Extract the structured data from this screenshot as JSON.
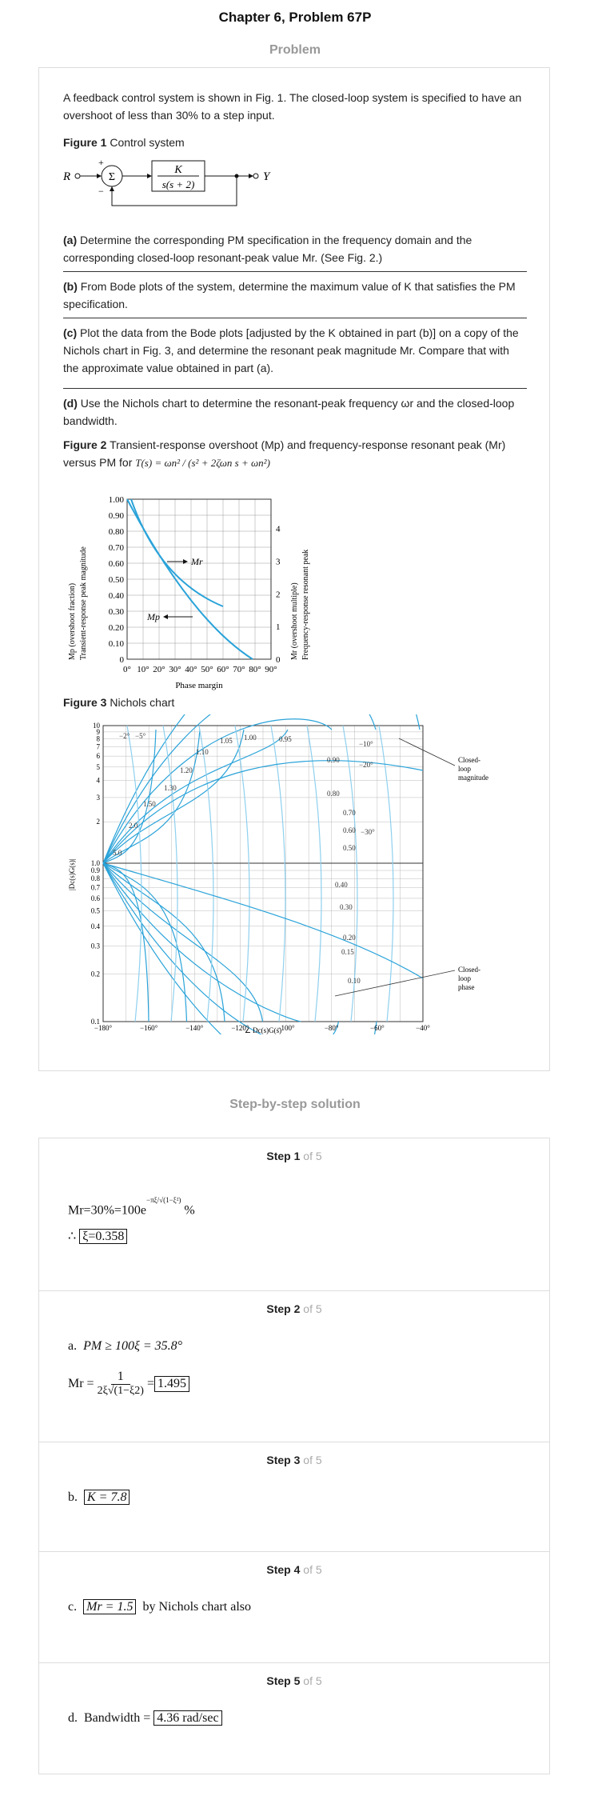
{
  "title": "Chapter 6, Problem 67P",
  "problem_heading": "Problem",
  "intro": "A feedback control system is shown in Fig. 1. The closed-loop system is specified to have an overshoot of less than 30% to a step input.",
  "fig1": {
    "label": "Figure 1",
    "caption": "Control system",
    "input": "R",
    "output": "Y",
    "plus": "+",
    "minus": "−",
    "sum": "Σ",
    "gain_num": "K",
    "gain_den": "s(s + 2)"
  },
  "parts": {
    "a_label": "(a)",
    "a_text": "Determine the corresponding PM specification in the frequency domain and the corresponding closed-loop resonant-peak value Mr. (See Fig. 2.)",
    "b_label": "(b)",
    "b_text": "From Bode plots of the system, determine the maximum value of K that satisfies the PM specification.",
    "c_label": "(c)",
    "c_text": "Plot the data from the Bode plots [adjusted by the K obtained in part (b)] on a copy of the Nichols chart in Fig. 3, and determine the resonant peak magnitude Mr. Compare that with the approximate value obtained in part (a).",
    "d_label": "(d)",
    "d_text": "Use the Nichols chart to determine the resonant-peak frequency ωr and the closed-loop bandwidth."
  },
  "fig2": {
    "label": "Figure 2",
    "caption": "Transient-response overshoot (Mp) and frequency-response resonant peak (Mr) versus PM for",
    "tf": "T(s) = ωn² / (s² + 2ζωn s + ωn²)",
    "left_ticks": [
      "0",
      "0.10",
      "0.20",
      "0.30",
      "0.40",
      "0.50",
      "0.60",
      "0.70",
      "0.80",
      "0.90",
      "1.00"
    ],
    "right_ticks": [
      "0",
      "1",
      "2",
      "3",
      "4"
    ],
    "x_ticks": [
      "0°",
      "10°",
      "20°",
      "30°",
      "40°",
      "50°",
      "60°",
      "70°",
      "80°",
      "90°"
    ],
    "xlabel": "Phase margin",
    "ylabel_left1": "Mp (overshoot fraction)",
    "ylabel_left2": "Transient-response peak magnitude",
    "ylabel_right1": "Mr (overshoot multiple)",
    "ylabel_right2": "Frequency-response resonant peak",
    "mr_label": "Mr",
    "mp_label": "Mp"
  },
  "fig3": {
    "label": "Figure 3",
    "caption": "Nichols chart",
    "y_ticks": [
      "0.1",
      "0.2",
      "0.3",
      "0.4",
      "0.5",
      "0.6",
      "0.7",
      "0.8",
      "0.9",
      "1.0",
      "2",
      "3",
      "4",
      "5",
      "6",
      "7",
      "8",
      "9",
      "10"
    ],
    "x_ticks": [
      "−180°",
      "−160°",
      "−140°",
      "−120°",
      "−100°",
      "−80°",
      "−60°",
      "−40°"
    ],
    "xlabel": "∠ Dc(s)G(s)",
    "ylabel": "|Dc(s)G(s)|",
    "mag_labels": [
      "5.0",
      "2.0",
      "1.50",
      "1.30",
      "1.20",
      "1.10",
      "1.05",
      "1.00",
      "0.95",
      "0.90",
      "0.80",
      "0.70",
      "0.60",
      "0.50",
      "0.40",
      "0.30",
      "0.20",
      "0.15",
      "0.10"
    ],
    "phase_labels": [
      "−2°",
      "−5°",
      "−10°",
      "−20°",
      "−30°"
    ],
    "closed_loop_magnitude": [
      "Closed-",
      "loop",
      "magnitude"
    ],
    "closed_loop_phase": [
      "Closed-",
      "loop",
      "phase"
    ]
  },
  "solution_heading": "Step-by-step solution",
  "steps": [
    {
      "word": "Step",
      "num": "1",
      "of": "of 5",
      "line1": "Mr=30%=100e",
      "exp": "−πξ/√(1−ξ²)",
      "pct": "%",
      "line2_prefix": "∴",
      "line2_box": "ξ=0.358"
    },
    {
      "word": "Step",
      "num": "2",
      "of": "of 5",
      "prefix": "a.",
      "line1": "PM ≥ 100ξ = 35.8°",
      "mr": "Mr =",
      "frac_num": "1",
      "frac_den": "2ξ√(1−ξ2)",
      "eq": "=",
      "box": "1.495"
    },
    {
      "word": "Step",
      "num": "3",
      "of": "of 5",
      "prefix": "b.",
      "box": "K = 7.8"
    },
    {
      "word": "Step",
      "num": "4",
      "of": "of 5",
      "prefix": "c.",
      "box": "Mr = 1.5",
      "tail": "by Nichols chart also"
    },
    {
      "word": "Step",
      "num": "5",
      "of": "of 5",
      "prefix": "d.",
      "text": "Bandwidth =",
      "box": "4.36 rad/sec"
    }
  ],
  "colors": {
    "curve": "#2aa3d9",
    "curve_light": "#8fd0ee",
    "grid": "#888888",
    "rule": "#333333"
  }
}
